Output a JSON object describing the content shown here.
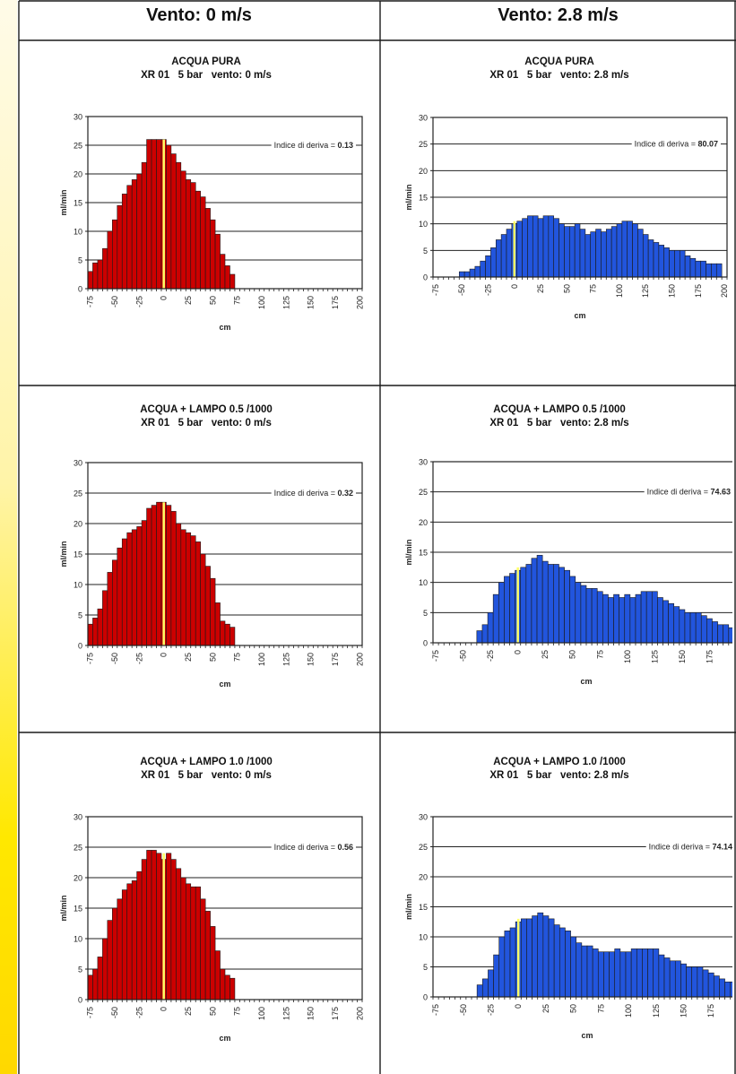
{
  "headers": {
    "left": "Vento: 0 m/s",
    "right": "Vento: 2.8 m/s"
  },
  "chart_data": [
    {
      "type": "bar",
      "title": "ACQUA PURA",
      "subtitle": "XR 01   5 bar   vento: 0 m/s",
      "xlabel": "cm",
      "ylabel": "ml/min",
      "ylim": [
        0,
        30
      ],
      "xlim": [
        -75,
        200
      ],
      "yticks": [
        "0",
        "5",
        "10",
        "15",
        "20",
        "25",
        "30"
      ],
      "xticks": [
        "-75",
        "-50",
        "-25",
        "0",
        "25",
        "50",
        "75",
        "100",
        "125",
        "150",
        "175",
        "200"
      ],
      "annotation": {
        "text": "Indice di deriva = ",
        "value": "0.13",
        "y": 25
      },
      "grid": true,
      "bar_color": "#cc0000",
      "zero_line_color": "#ffff66",
      "bin_width": 5,
      "x_start": -75,
      "values": [
        3,
        4.5,
        5,
        7,
        10,
        12,
        14.5,
        16.5,
        18,
        19,
        20,
        22,
        26,
        26,
        26,
        26,
        25,
        23.5,
        22,
        20.5,
        19,
        18.5,
        17,
        16,
        14,
        12,
        9.5,
        6,
        4,
        2.5
      ]
    },
    {
      "type": "bar",
      "title": "ACQUA PURA",
      "subtitle": "XR 01   5 bar   vento: 2.8 m/s",
      "xlabel": "cm",
      "ylabel": "ml/min",
      "ylim": [
        0,
        30
      ],
      "xlim": [
        -75,
        200
      ],
      "yticks": [
        "0",
        "5",
        "10",
        "15",
        "20",
        "25",
        "30"
      ],
      "xticks": [
        "-75",
        "-50",
        "-25",
        "0",
        "25",
        "50",
        "75",
        "100",
        "125",
        "150",
        "175",
        "200"
      ],
      "annotation": {
        "text": "Indice di deriva = ",
        "value": "80.07",
        "y": 25
      },
      "grid": true,
      "bar_color": "#2255dd",
      "zero_line_color": "#ffff66",
      "bin_width": 5,
      "x_start": -75,
      "values": [
        0,
        0,
        0,
        0,
        0,
        1,
        1,
        1.5,
        2,
        3,
        4,
        5.5,
        7,
        8,
        9,
        10,
        10.5,
        11,
        11.5,
        11.5,
        11,
        11.5,
        11.5,
        11,
        10,
        9.5,
        9.5,
        10,
        9,
        8,
        8.5,
        9,
        8.5,
        9,
        9.5,
        10,
        10.5,
        10.5,
        10,
        9,
        8,
        7,
        6.5,
        6,
        5.5,
        5,
        5,
        5,
        4,
        3.5,
        3,
        3,
        2.5,
        2.5,
        2.5
      ]
    },
    {
      "type": "bar",
      "title": "ACQUA + LAMPO 0.5 /1000",
      "subtitle": "XR 01   5 bar   vento: 0 m/s",
      "xlabel": "cm",
      "ylabel": "ml/min",
      "ylim": [
        0,
        30
      ],
      "xlim": [
        -75,
        200
      ],
      "yticks": [
        "0",
        "5",
        "10",
        "15",
        "20",
        "25",
        "30"
      ],
      "xticks": [
        "-75",
        "-50",
        "-25",
        "0",
        "25",
        "50",
        "75",
        "100",
        "125",
        "150",
        "175",
        "200"
      ],
      "annotation": {
        "text": "Indice di deriva = ",
        "value": "0.32",
        "y": 25
      },
      "grid": true,
      "bar_color": "#cc0000",
      "zero_line_color": "#ffff66",
      "bin_width": 5,
      "x_start": -75,
      "values": [
        3.5,
        4.5,
        6,
        9,
        12,
        14,
        16,
        17.5,
        18.5,
        19,
        19.5,
        20.5,
        22.5,
        23,
        23.5,
        23.5,
        23,
        22,
        20,
        19,
        18.5,
        18,
        17,
        15,
        13,
        11,
        7,
        4,
        3.5,
        3
      ]
    },
    {
      "type": "bar",
      "title": "ACQUA + LAMPO 0.5 /1000",
      "subtitle": "XR 01   5 bar   vento: 2.8 m/s",
      "xlabel": "cm",
      "ylabel": "ml/min",
      "ylim": [
        0,
        30
      ],
      "xlim": [
        -75,
        200
      ],
      "yticks": [
        "0",
        "5",
        "10",
        "15",
        "20",
        "25",
        "30"
      ],
      "xticks": [
        "-75",
        "-50",
        "-25",
        "0",
        "25",
        "50",
        "75",
        "100",
        "125",
        "150",
        "175",
        "200"
      ],
      "annotation": {
        "text": "Indice di deriva = ",
        "value": "74.63",
        "y": 25
      },
      "grid": true,
      "bar_color": "#2255dd",
      "zero_line_color": "#ffff66",
      "bin_width": 5,
      "x_start": -75,
      "values": [
        0,
        0,
        0,
        0,
        0,
        0,
        0,
        0,
        2,
        3,
        5,
        8,
        10,
        11,
        11.5,
        12,
        12.5,
        13,
        14,
        14.5,
        13.5,
        13,
        13,
        12.5,
        12,
        11,
        10,
        9.5,
        9,
        9,
        8.5,
        8,
        7.5,
        8,
        7.5,
        8,
        7.5,
        8,
        8.5,
        8.5,
        8.5,
        7.5,
        7,
        6.5,
        6,
        5.5,
        5,
        5,
        5,
        4.5,
        4,
        3.5,
        3,
        3,
        2.5
      ]
    },
    {
      "type": "bar",
      "title": "ACQUA + LAMPO 1.0 /1000",
      "subtitle": "XR 01   5 bar   vento: 0 m/s",
      "xlabel": "cm",
      "ylabel": "ml/min",
      "ylim": [
        0,
        30
      ],
      "xlim": [
        -75,
        200
      ],
      "yticks": [
        "0",
        "5",
        "10",
        "15",
        "20",
        "25",
        "30"
      ],
      "xticks": [
        "-75",
        "-50",
        "-25",
        "0",
        "25",
        "50",
        "75",
        "100",
        "125",
        "150",
        "175",
        "200"
      ],
      "annotation": {
        "text": "Indice di deriva = ",
        "value": "0.56",
        "y": 25
      },
      "grid": true,
      "bar_color": "#cc0000",
      "zero_line_color": "#ffff66",
      "bin_width": 5,
      "x_start": -75,
      "values": [
        4,
        5,
        7,
        10,
        13,
        15,
        16.5,
        18,
        19,
        19.5,
        21,
        23,
        24.5,
        24.5,
        24,
        23,
        24,
        23,
        21.5,
        20,
        19,
        18.5,
        18.5,
        16.5,
        14.5,
        12,
        8,
        5,
        4,
        3.5
      ]
    },
    {
      "type": "bar",
      "title": "ACQUA + LAMPO 1.0 /1000",
      "subtitle": "XR 01   5 bar   vento: 2.8 m/s",
      "xlabel": "cm",
      "ylabel": "ml/min",
      "ylim": [
        0,
        30
      ],
      "xlim": [
        -75,
        200
      ],
      "yticks": [
        "0",
        "5",
        "10",
        "15",
        "20",
        "25",
        "30"
      ],
      "xticks": [
        "-75",
        "-50",
        "-25",
        "0",
        "25",
        "50",
        "75",
        "100",
        "125",
        "150",
        "175",
        "200"
      ],
      "annotation": {
        "text": "Indice di deriva = ",
        "value": "74.14",
        "y": 25
      },
      "grid": true,
      "bar_color": "#2255dd",
      "zero_line_color": "#ffff66",
      "bin_width": 5,
      "x_start": -75,
      "values": [
        0,
        0,
        0,
        0,
        0,
        0,
        0,
        0,
        2,
        3,
        4.5,
        7,
        10,
        11,
        11.5,
        12.5,
        13,
        13,
        13.5,
        14,
        13.5,
        13,
        12,
        11.5,
        11,
        10,
        9,
        8.5,
        8.5,
        8,
        7.5,
        7.5,
        7.5,
        8,
        7.5,
        7.5,
        8,
        8,
        8,
        8,
        8,
        7,
        6.5,
        6,
        6,
        5.5,
        5,
        5,
        5,
        4.5,
        4,
        3.5,
        3,
        2.5,
        2.5
      ]
    }
  ]
}
